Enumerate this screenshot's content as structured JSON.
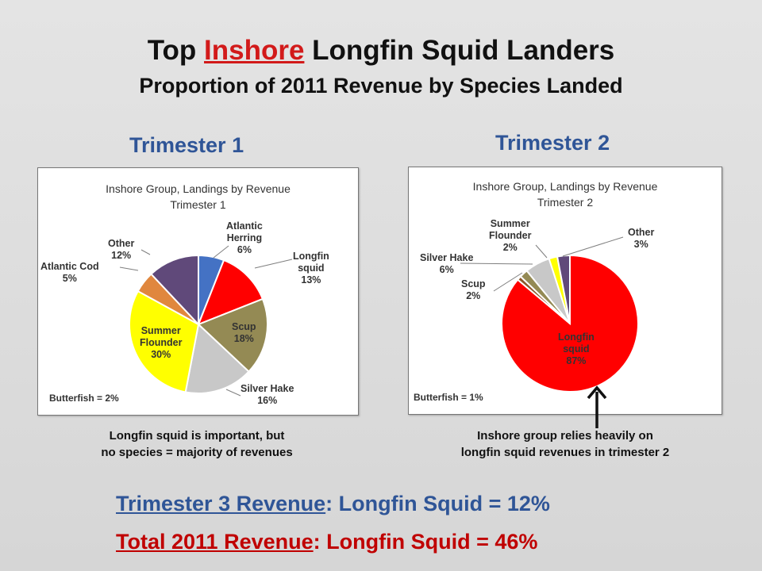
{
  "header": {
    "title_pre": "Top ",
    "title_highlight": "Inshore",
    "title_post": " Longfin Squid Landers",
    "subtitle": "Proportion of  2011 Revenue by Species Landed"
  },
  "panels": [
    {
      "heading": "Trimester 1",
      "chart_title_line1": "Inshore Group, Landings by Revenue",
      "chart_title_line2": "Trimester 1",
      "footnote": "Butterfish = 2%",
      "caption_line1": "Longfin squid is important, but",
      "caption_line2": "no species = majority of revenues"
    },
    {
      "heading": "Trimester 2",
      "chart_title_line1": "Inshore Group, Landings by Revenue",
      "chart_title_line2": "Trimester 2",
      "footnote": "Butterfish = 1%",
      "caption_line1": "Inshore group relies heavily on",
      "caption_line2": "longfin squid revenues in trimester 2"
    }
  ],
  "chart_data": [
    {
      "type": "pie",
      "title": "Inshore Group, Landings by Revenue",
      "subtitle": "Trimester 1",
      "slices": [
        {
          "name": "Atlantic Herring",
          "value": 6,
          "label": "6%",
          "color": "#4472c4"
        },
        {
          "name": "Longfin squid",
          "value": 13,
          "label": "13%",
          "color": "#ff0000"
        },
        {
          "name": "Scup",
          "value": 18,
          "label": "18%",
          "color": "#948a54"
        },
        {
          "name": "Silver Hake",
          "value": 16,
          "label": "16%",
          "color": "#c8c8c8"
        },
        {
          "name": "Summer Flounder",
          "value": 30,
          "label": "30%",
          "color": "#ffff00"
        },
        {
          "name": "Atlantic Cod",
          "value": 5,
          "label": "5%",
          "color": "#e0873e"
        },
        {
          "name": "Other",
          "value": 12,
          "label": "12%",
          "color": "#60497a"
        }
      ],
      "footnote": "Butterfish = 2%"
    },
    {
      "type": "pie",
      "title": "Inshore Group, Landings by Revenue",
      "subtitle": "Trimester 2",
      "slices": [
        {
          "name": "Longfin squid",
          "value": 87,
          "label": "87%",
          "color": "#ff0000"
        },
        {
          "name": "Butterfish",
          "value": 1,
          "color": "#8c5a2b"
        },
        {
          "name": "Scup",
          "value": 2,
          "label": "2%",
          "color": "#948a54"
        },
        {
          "name": "Silver Hake",
          "value": 6,
          "label": "6%",
          "color": "#c8c8c8"
        },
        {
          "name": "Summer Flounder",
          "value": 2,
          "label": "2%",
          "color": "#ffff00"
        },
        {
          "name": "Other",
          "value": 3,
          "label": "3%",
          "color": "#60497a"
        }
      ],
      "footnote": "Butterfish = 1%"
    }
  ],
  "bottom": {
    "line1_underlined": "Trimester 3 Revenue",
    "line1_rest": ": Longfin Squid = 12%",
    "line2_underlined": "Total 2011 Revenue",
    "line2_rest": ": Longfin Squid = 46%"
  }
}
